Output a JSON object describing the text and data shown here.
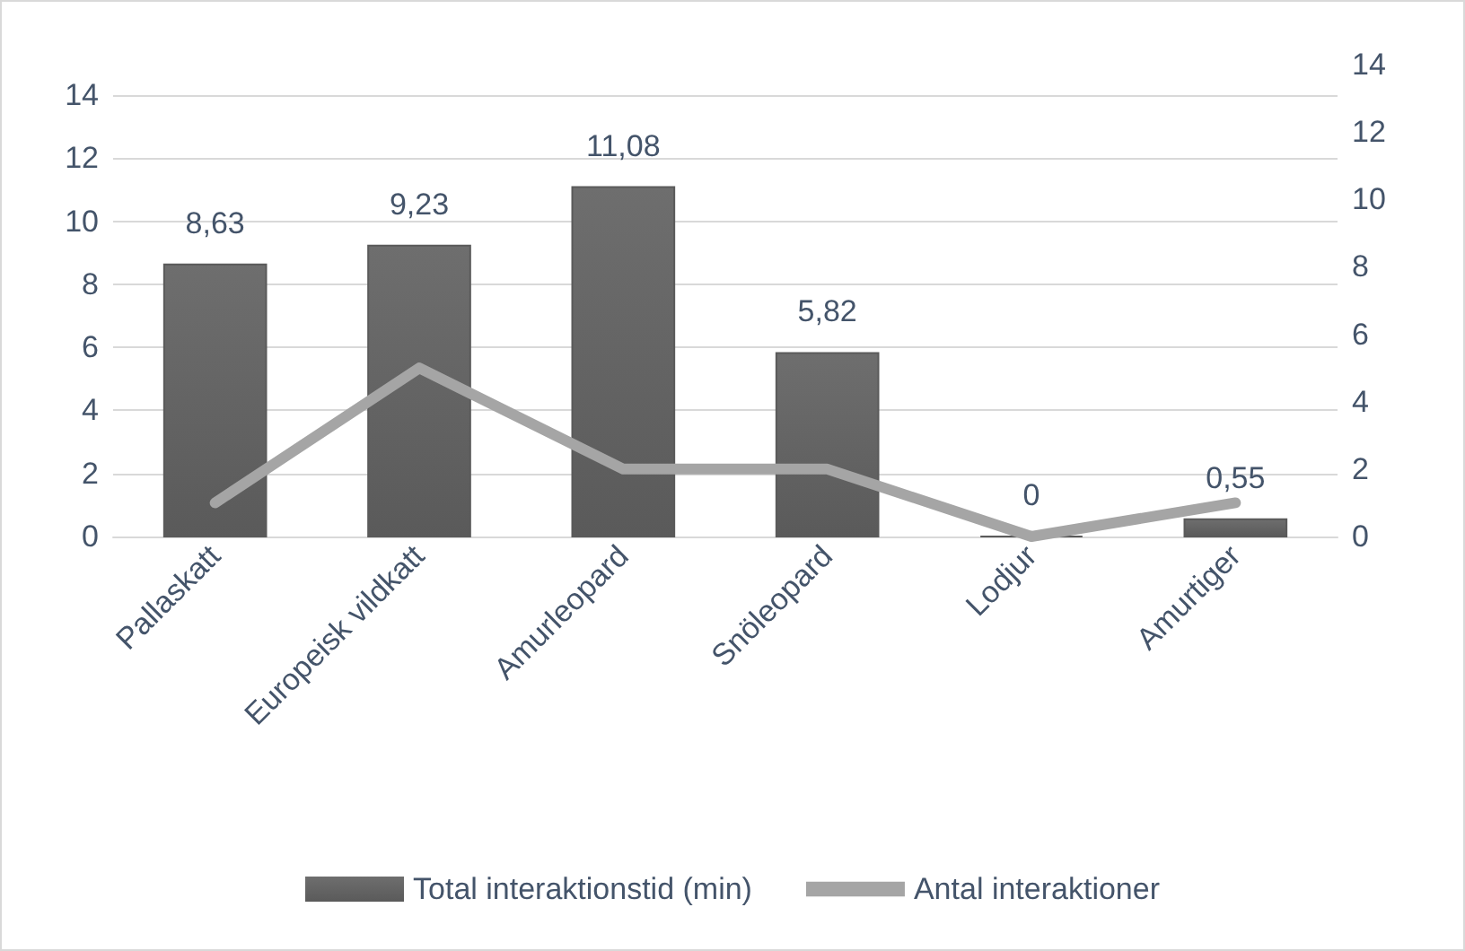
{
  "chart_data": {
    "type": "bar",
    "categories": [
      "Pallaskatt",
      "Europeisk vildkatt",
      "Amurleopard",
      "Snöleopard",
      "Lodjur",
      "Amurtiger"
    ],
    "series": [
      {
        "name": "Total interaktionstid (min)",
        "color": "#5a5a5a",
        "values": [
          8.63,
          9.23,
          11.08,
          5.82,
          0,
          0.55
        ],
        "value_labels": [
          "8,63",
          "9,23",
          "11,08",
          "5,82",
          "0",
          "0,55"
        ]
      },
      {
        "name": "Antal interaktioner",
        "type": "line",
        "axis": "y2",
        "color": "#a5a5a5",
        "values": [
          1,
          5,
          2,
          2,
          0,
          1
        ]
      }
    ],
    "ylim": [
      0,
      14
    ],
    "yticks": [
      0,
      2,
      4,
      6,
      8,
      10,
      12,
      14
    ],
    "y2lim": [
      0,
      14
    ],
    "y2ticks": [
      0,
      2,
      4,
      6,
      8,
      10,
      12,
      14
    ],
    "grid": "y",
    "legend": "bottom",
    "marker": "none",
    "line_style": "solid"
  }
}
